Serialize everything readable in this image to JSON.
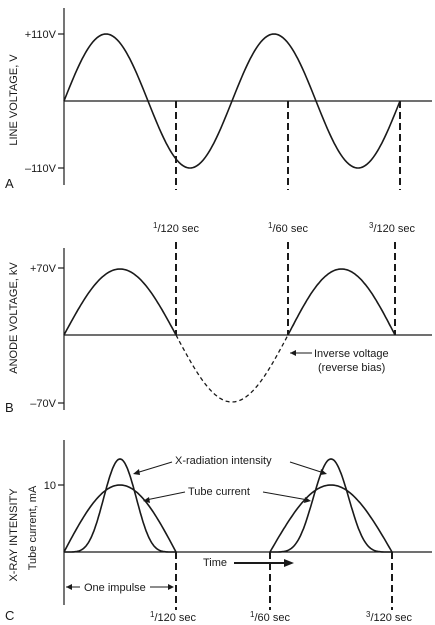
{
  "panel_a": {
    "letter": "A",
    "y_axis_title": "LINE VOLTAGE, V",
    "tick_top": "+110V",
    "tick_bottom": "–110V"
  },
  "time_marks": {
    "first": {
      "num": "1",
      "den": "120",
      "unit": " sec"
    },
    "second": {
      "num": "1",
      "den": "60",
      "unit": " sec"
    },
    "third": {
      "num": "3",
      "den": "120",
      "unit": " sec"
    }
  },
  "panel_b": {
    "letter": "B",
    "y_axis_title": "ANODE VOLTAGE, kV",
    "tick_top": "+70V",
    "tick_bottom": "–70V",
    "inverse_label_line1": "Inverse voltage",
    "inverse_label_line2": "(reverse bias)"
  },
  "panel_c": {
    "letter": "C",
    "y_axis_title": "X-RAY INTENSITY",
    "y_axis_subtitle": "Tube current, mA",
    "tick_10": "10",
    "xray_label": "X-radiation intensity",
    "tube_label": "Tube current",
    "time_label": "Time",
    "impulse_label": "One impulse"
  }
}
